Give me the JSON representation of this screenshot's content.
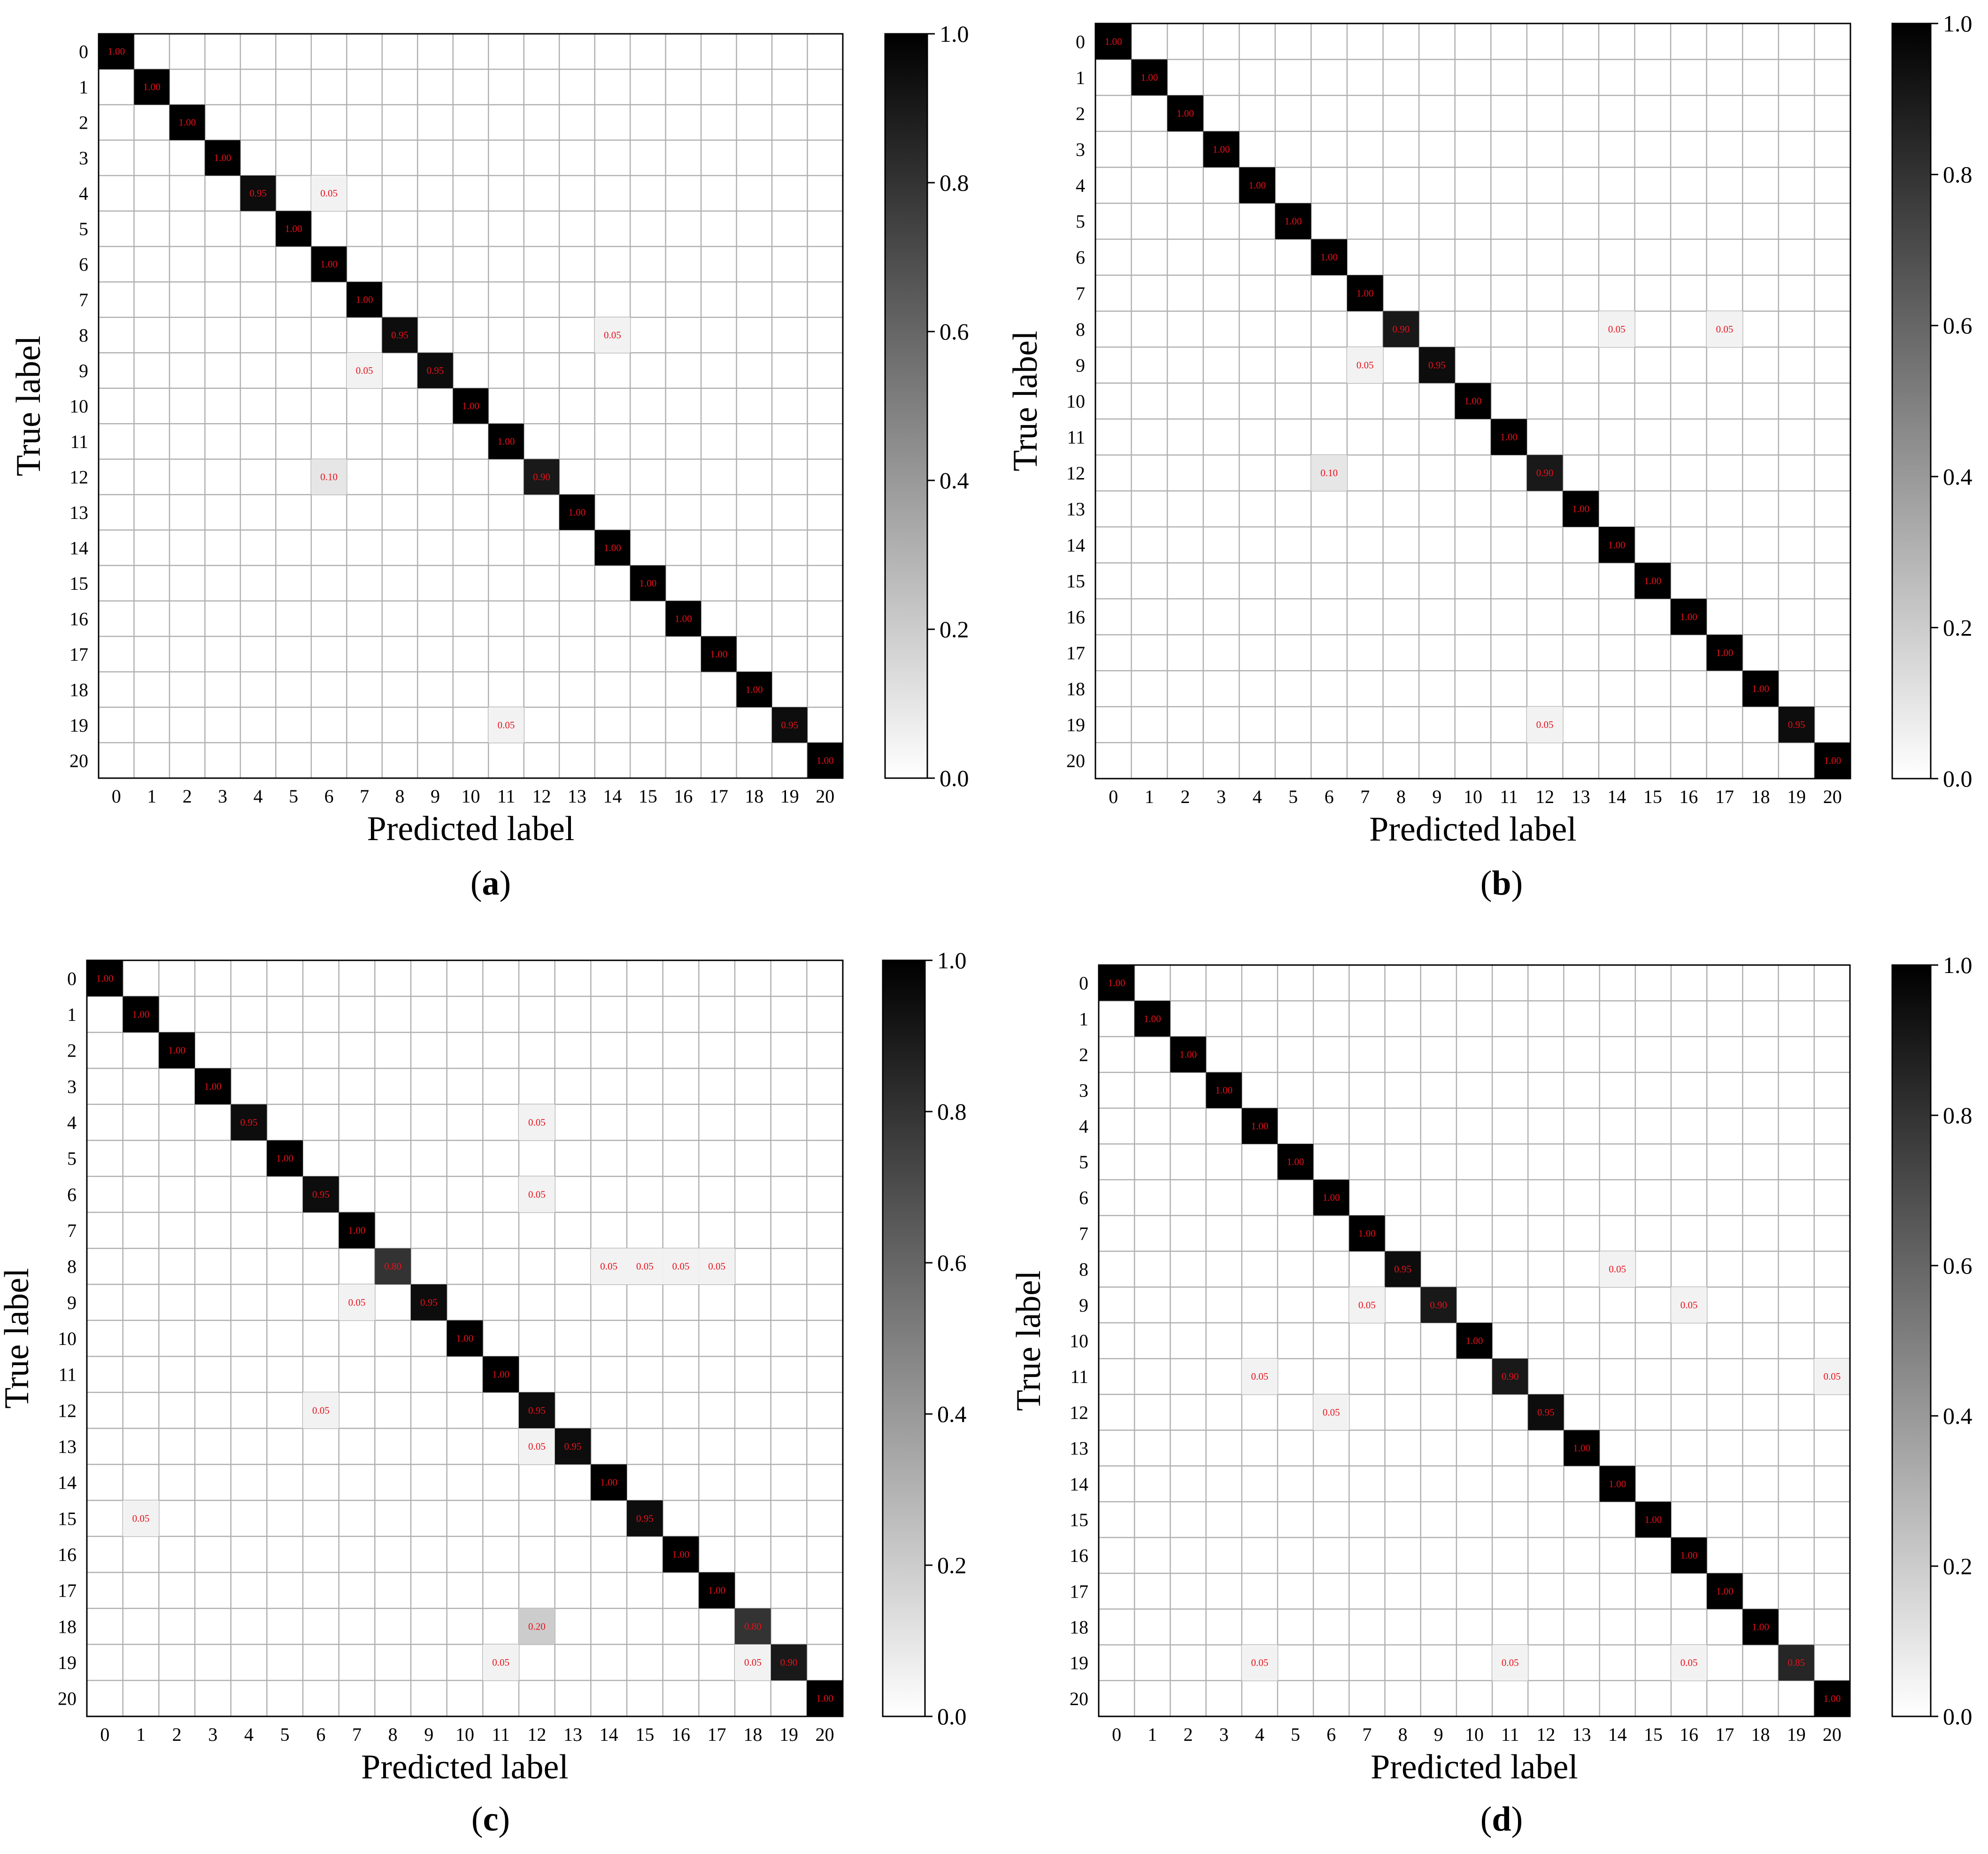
{
  "chart_data": [
    {
      "type": "heatmap",
      "panel_label": "(a)",
      "xlabel": "Predicted label",
      "ylabel": "True label",
      "x_ticks": [
        "0",
        "1",
        "2",
        "3",
        "4",
        "5",
        "6",
        "7",
        "8",
        "9",
        "10",
        "11",
        "12",
        "13",
        "14",
        "15",
        "16",
        "17",
        "18",
        "19",
        "20"
      ],
      "y_ticks": [
        "0",
        "1",
        "2",
        "3",
        "4",
        "5",
        "6",
        "7",
        "8",
        "9",
        "10",
        "11",
        "12",
        "13",
        "14",
        "15",
        "16",
        "17",
        "18",
        "19",
        "20"
      ],
      "colorbar": {
        "min": 0.0,
        "max": 1.0,
        "ticks": [
          "0.0",
          "0.2",
          "0.4",
          "0.6",
          "0.8",
          "1.0"
        ],
        "colormap": "white-to-black"
      },
      "cells": [
        {
          "row": 0,
          "col": 0,
          "value": 1.0,
          "label": "1.00"
        },
        {
          "row": 1,
          "col": 1,
          "value": 1.0,
          "label": "1.00"
        },
        {
          "row": 2,
          "col": 2,
          "value": 1.0,
          "label": "1.00"
        },
        {
          "row": 3,
          "col": 3,
          "value": 1.0,
          "label": "1.00"
        },
        {
          "row": 4,
          "col": 4,
          "value": 0.95,
          "label": "0.95"
        },
        {
          "row": 4,
          "col": 6,
          "value": 0.05,
          "label": "0.05"
        },
        {
          "row": 5,
          "col": 5,
          "value": 1.0,
          "label": "1.00"
        },
        {
          "row": 6,
          "col": 6,
          "value": 1.0,
          "label": "1.00"
        },
        {
          "row": 7,
          "col": 7,
          "value": 1.0,
          "label": "1.00"
        },
        {
          "row": 8,
          "col": 8,
          "value": 0.95,
          "label": "0.95"
        },
        {
          "row": 8,
          "col": 14,
          "value": 0.05,
          "label": "0.05"
        },
        {
          "row": 9,
          "col": 7,
          "value": 0.05,
          "label": "0.05"
        },
        {
          "row": 9,
          "col": 9,
          "value": 0.95,
          "label": "0.95"
        },
        {
          "row": 10,
          "col": 10,
          "value": 1.0,
          "label": "1.00"
        },
        {
          "row": 11,
          "col": 11,
          "value": 1.0,
          "label": "1.00"
        },
        {
          "row": 12,
          "col": 6,
          "value": 0.1,
          "label": "0.10"
        },
        {
          "row": 12,
          "col": 12,
          "value": 0.9,
          "label": "0.90"
        },
        {
          "row": 13,
          "col": 13,
          "value": 1.0,
          "label": "1.00"
        },
        {
          "row": 14,
          "col": 14,
          "value": 1.0,
          "label": "1.00"
        },
        {
          "row": 15,
          "col": 15,
          "value": 1.0,
          "label": "1.00"
        },
        {
          "row": 16,
          "col": 16,
          "value": 1.0,
          "label": "1.00"
        },
        {
          "row": 17,
          "col": 17,
          "value": 1.0,
          "label": "1.00"
        },
        {
          "row": 18,
          "col": 18,
          "value": 1.0,
          "label": "1.00"
        },
        {
          "row": 19,
          "col": 11,
          "value": 0.05,
          "label": "0.05"
        },
        {
          "row": 19,
          "col": 19,
          "value": 0.95,
          "label": "0.95"
        },
        {
          "row": 20,
          "col": 20,
          "value": 1.0,
          "label": "1.00"
        }
      ]
    },
    {
      "type": "heatmap",
      "panel_label": "(b)",
      "xlabel": "Predicted label",
      "ylabel": "True label",
      "x_ticks": [
        "0",
        "1",
        "2",
        "3",
        "4",
        "5",
        "6",
        "7",
        "8",
        "9",
        "10",
        "11",
        "12",
        "13",
        "14",
        "15",
        "16",
        "17",
        "18",
        "19",
        "20"
      ],
      "y_ticks": [
        "0",
        "1",
        "2",
        "3",
        "4",
        "5",
        "6",
        "7",
        "8",
        "9",
        "10",
        "11",
        "12",
        "13",
        "14",
        "15",
        "16",
        "17",
        "18",
        "19",
        "20"
      ],
      "colorbar": {
        "min": 0.0,
        "max": 1.0,
        "ticks": [
          "0.0",
          "0.2",
          "0.4",
          "0.6",
          "0.8",
          "1.0"
        ],
        "colormap": "white-to-black"
      },
      "cells": [
        {
          "row": 0,
          "col": 0,
          "value": 1.0,
          "label": "1.00"
        },
        {
          "row": 1,
          "col": 1,
          "value": 1.0,
          "label": "1.00"
        },
        {
          "row": 2,
          "col": 2,
          "value": 1.0,
          "label": "1.00"
        },
        {
          "row": 3,
          "col": 3,
          "value": 1.0,
          "label": "1.00"
        },
        {
          "row": 4,
          "col": 4,
          "value": 1.0,
          "label": "1.00"
        },
        {
          "row": 5,
          "col": 5,
          "value": 1.0,
          "label": "1.00"
        },
        {
          "row": 6,
          "col": 6,
          "value": 1.0,
          "label": "1.00"
        },
        {
          "row": 7,
          "col": 7,
          "value": 1.0,
          "label": "1.00"
        },
        {
          "row": 8,
          "col": 8,
          "value": 0.9,
          "label": "0.90"
        },
        {
          "row": 8,
          "col": 14,
          "value": 0.05,
          "label": "0.05"
        },
        {
          "row": 8,
          "col": 17,
          "value": 0.05,
          "label": "0.05"
        },
        {
          "row": 9,
          "col": 7,
          "value": 0.05,
          "label": "0.05"
        },
        {
          "row": 9,
          "col": 9,
          "value": 0.95,
          "label": "0.95"
        },
        {
          "row": 10,
          "col": 10,
          "value": 1.0,
          "label": "1.00"
        },
        {
          "row": 11,
          "col": 11,
          "value": 1.0,
          "label": "1.00"
        },
        {
          "row": 12,
          "col": 6,
          "value": 0.1,
          "label": "0.10"
        },
        {
          "row": 12,
          "col": 12,
          "value": 0.9,
          "label": "0.90"
        },
        {
          "row": 13,
          "col": 13,
          "value": 1.0,
          "label": "1.00"
        },
        {
          "row": 14,
          "col": 14,
          "value": 1.0,
          "label": "1.00"
        },
        {
          "row": 15,
          "col": 15,
          "value": 1.0,
          "label": "1.00"
        },
        {
          "row": 16,
          "col": 16,
          "value": 1.0,
          "label": "1.00"
        },
        {
          "row": 17,
          "col": 17,
          "value": 1.0,
          "label": "1.00"
        },
        {
          "row": 18,
          "col": 18,
          "value": 1.0,
          "label": "1.00"
        },
        {
          "row": 19,
          "col": 12,
          "value": 0.05,
          "label": "0.05"
        },
        {
          "row": 19,
          "col": 19,
          "value": 0.95,
          "label": "0.95"
        },
        {
          "row": 20,
          "col": 20,
          "value": 1.0,
          "label": "1.00"
        }
      ]
    },
    {
      "type": "heatmap",
      "panel_label": "(c)",
      "xlabel": "Predicted label",
      "ylabel": "True label",
      "x_ticks": [
        "0",
        "1",
        "2",
        "3",
        "4",
        "5",
        "6",
        "7",
        "8",
        "9",
        "10",
        "11",
        "12",
        "13",
        "14",
        "15",
        "16",
        "17",
        "18",
        "19",
        "20"
      ],
      "y_ticks": [
        "0",
        "1",
        "2",
        "3",
        "4",
        "5",
        "6",
        "7",
        "8",
        "9",
        "10",
        "11",
        "12",
        "13",
        "14",
        "15",
        "16",
        "17",
        "18",
        "19",
        "20"
      ],
      "colorbar": {
        "min": 0.0,
        "max": 1.0,
        "ticks": [
          "0.0",
          "0.2",
          "0.4",
          "0.6",
          "0.8",
          "1.0"
        ],
        "colormap": "white-to-black"
      },
      "cells": [
        {
          "row": 0,
          "col": 0,
          "value": 1.0,
          "label": "1.00"
        },
        {
          "row": 1,
          "col": 1,
          "value": 1.0,
          "label": "1.00"
        },
        {
          "row": 2,
          "col": 2,
          "value": 1.0,
          "label": "1.00"
        },
        {
          "row": 3,
          "col": 3,
          "value": 1.0,
          "label": "1.00"
        },
        {
          "row": 4,
          "col": 4,
          "value": 0.95,
          "label": "0.95"
        },
        {
          "row": 4,
          "col": 12,
          "value": 0.05,
          "label": "0.05"
        },
        {
          "row": 5,
          "col": 5,
          "value": 1.0,
          "label": "1.00"
        },
        {
          "row": 6,
          "col": 6,
          "value": 0.95,
          "label": "0.95"
        },
        {
          "row": 6,
          "col": 12,
          "value": 0.05,
          "label": "0.05"
        },
        {
          "row": 7,
          "col": 7,
          "value": 1.0,
          "label": "1.00"
        },
        {
          "row": 8,
          "col": 8,
          "value": 0.8,
          "label": "0.80"
        },
        {
          "row": 8,
          "col": 14,
          "value": 0.05,
          "label": "0.05"
        },
        {
          "row": 8,
          "col": 15,
          "value": 0.05,
          "label": "0.05"
        },
        {
          "row": 8,
          "col": 16,
          "value": 0.05,
          "label": "0.05"
        },
        {
          "row": 8,
          "col": 17,
          "value": 0.05,
          "label": "0.05"
        },
        {
          "row": 9,
          "col": 7,
          "value": 0.05,
          "label": "0.05"
        },
        {
          "row": 9,
          "col": 9,
          "value": 0.95,
          "label": "0.95"
        },
        {
          "row": 10,
          "col": 10,
          "value": 1.0,
          "label": "1.00"
        },
        {
          "row": 11,
          "col": 11,
          "value": 1.0,
          "label": "1.00"
        },
        {
          "row": 12,
          "col": 6,
          "value": 0.05,
          "label": "0.05"
        },
        {
          "row": 12,
          "col": 12,
          "value": 0.95,
          "label": "0.95"
        },
        {
          "row": 13,
          "col": 12,
          "value": 0.05,
          "label": "0.05"
        },
        {
          "row": 13,
          "col": 13,
          "value": 0.95,
          "label": "0.95"
        },
        {
          "row": 14,
          "col": 14,
          "value": 1.0,
          "label": "1.00"
        },
        {
          "row": 15,
          "col": 1,
          "value": 0.05,
          "label": "0.05"
        },
        {
          "row": 15,
          "col": 15,
          "value": 0.95,
          "label": "0.95"
        },
        {
          "row": 16,
          "col": 16,
          "value": 1.0,
          "label": "1.00"
        },
        {
          "row": 17,
          "col": 17,
          "value": 1.0,
          "label": "1.00"
        },
        {
          "row": 18,
          "col": 12,
          "value": 0.2,
          "label": "0.20"
        },
        {
          "row": 18,
          "col": 18,
          "value": 0.8,
          "label": "0.80"
        },
        {
          "row": 19,
          "col": 11,
          "value": 0.05,
          "label": "0.05"
        },
        {
          "row": 19,
          "col": 18,
          "value": 0.05,
          "label": "0.05"
        },
        {
          "row": 19,
          "col": 19,
          "value": 0.9,
          "label": "0.90"
        },
        {
          "row": 20,
          "col": 20,
          "value": 1.0,
          "label": "1.00"
        }
      ]
    },
    {
      "type": "heatmap",
      "panel_label": "(d)",
      "xlabel": "Predicted label",
      "ylabel": "True label",
      "x_ticks": [
        "0",
        "1",
        "2",
        "3",
        "4",
        "5",
        "6",
        "7",
        "8",
        "9",
        "10",
        "11",
        "12",
        "13",
        "14",
        "15",
        "16",
        "17",
        "18",
        "19",
        "20"
      ],
      "y_ticks": [
        "0",
        "1",
        "2",
        "3",
        "4",
        "5",
        "6",
        "7",
        "8",
        "9",
        "10",
        "11",
        "12",
        "13",
        "14",
        "15",
        "16",
        "17",
        "18",
        "19",
        "20"
      ],
      "colorbar": {
        "min": 0.0,
        "max": 1.0,
        "ticks": [
          "0.0",
          "0.2",
          "0.4",
          "0.6",
          "0.8",
          "1.0"
        ],
        "colormap": "white-to-black"
      },
      "cells": [
        {
          "row": 0,
          "col": 0,
          "value": 1.0,
          "label": "1.00"
        },
        {
          "row": 1,
          "col": 1,
          "value": 1.0,
          "label": "1.00"
        },
        {
          "row": 2,
          "col": 2,
          "value": 1.0,
          "label": "1.00"
        },
        {
          "row": 3,
          "col": 3,
          "value": 1.0,
          "label": "1.00"
        },
        {
          "row": 4,
          "col": 4,
          "value": 1.0,
          "label": "1.00"
        },
        {
          "row": 5,
          "col": 5,
          "value": 1.0,
          "label": "1.00"
        },
        {
          "row": 6,
          "col": 6,
          "value": 1.0,
          "label": "1.00"
        },
        {
          "row": 7,
          "col": 7,
          "value": 1.0,
          "label": "1.00"
        },
        {
          "row": 8,
          "col": 8,
          "value": 0.95,
          "label": "0.95"
        },
        {
          "row": 8,
          "col": 14,
          "value": 0.05,
          "label": "0.05"
        },
        {
          "row": 9,
          "col": 7,
          "value": 0.05,
          "label": "0.05"
        },
        {
          "row": 9,
          "col": 9,
          "value": 0.9,
          "label": "0.90"
        },
        {
          "row": 9,
          "col": 16,
          "value": 0.05,
          "label": "0.05"
        },
        {
          "row": 10,
          "col": 10,
          "value": 1.0,
          "label": "1.00"
        },
        {
          "row": 11,
          "col": 4,
          "value": 0.05,
          "label": "0.05"
        },
        {
          "row": 11,
          "col": 11,
          "value": 0.9,
          "label": "0.90"
        },
        {
          "row": 11,
          "col": 20,
          "value": 0.05,
          "label": "0.05"
        },
        {
          "row": 12,
          "col": 6,
          "value": 0.05,
          "label": "0.05"
        },
        {
          "row": 12,
          "col": 12,
          "value": 0.95,
          "label": "0.95"
        },
        {
          "row": 13,
          "col": 13,
          "value": 1.0,
          "label": "1.00"
        },
        {
          "row": 14,
          "col": 14,
          "value": 1.0,
          "label": "1.00"
        },
        {
          "row": 15,
          "col": 15,
          "value": 1.0,
          "label": "1.00"
        },
        {
          "row": 16,
          "col": 16,
          "value": 1.0,
          "label": "1.00"
        },
        {
          "row": 17,
          "col": 17,
          "value": 1.0,
          "label": "1.00"
        },
        {
          "row": 18,
          "col": 18,
          "value": 1.0,
          "label": "1.00"
        },
        {
          "row": 19,
          "col": 4,
          "value": 0.05,
          "label": "0.05"
        },
        {
          "row": 19,
          "col": 11,
          "value": 0.05,
          "label": "0.05"
        },
        {
          "row": 19,
          "col": 16,
          "value": 0.05,
          "label": "0.05"
        },
        {
          "row": 19,
          "col": 19,
          "value": 0.85,
          "label": "0.85"
        },
        {
          "row": 20,
          "col": 20,
          "value": 1.0,
          "label": "1.00"
        }
      ]
    }
  ]
}
